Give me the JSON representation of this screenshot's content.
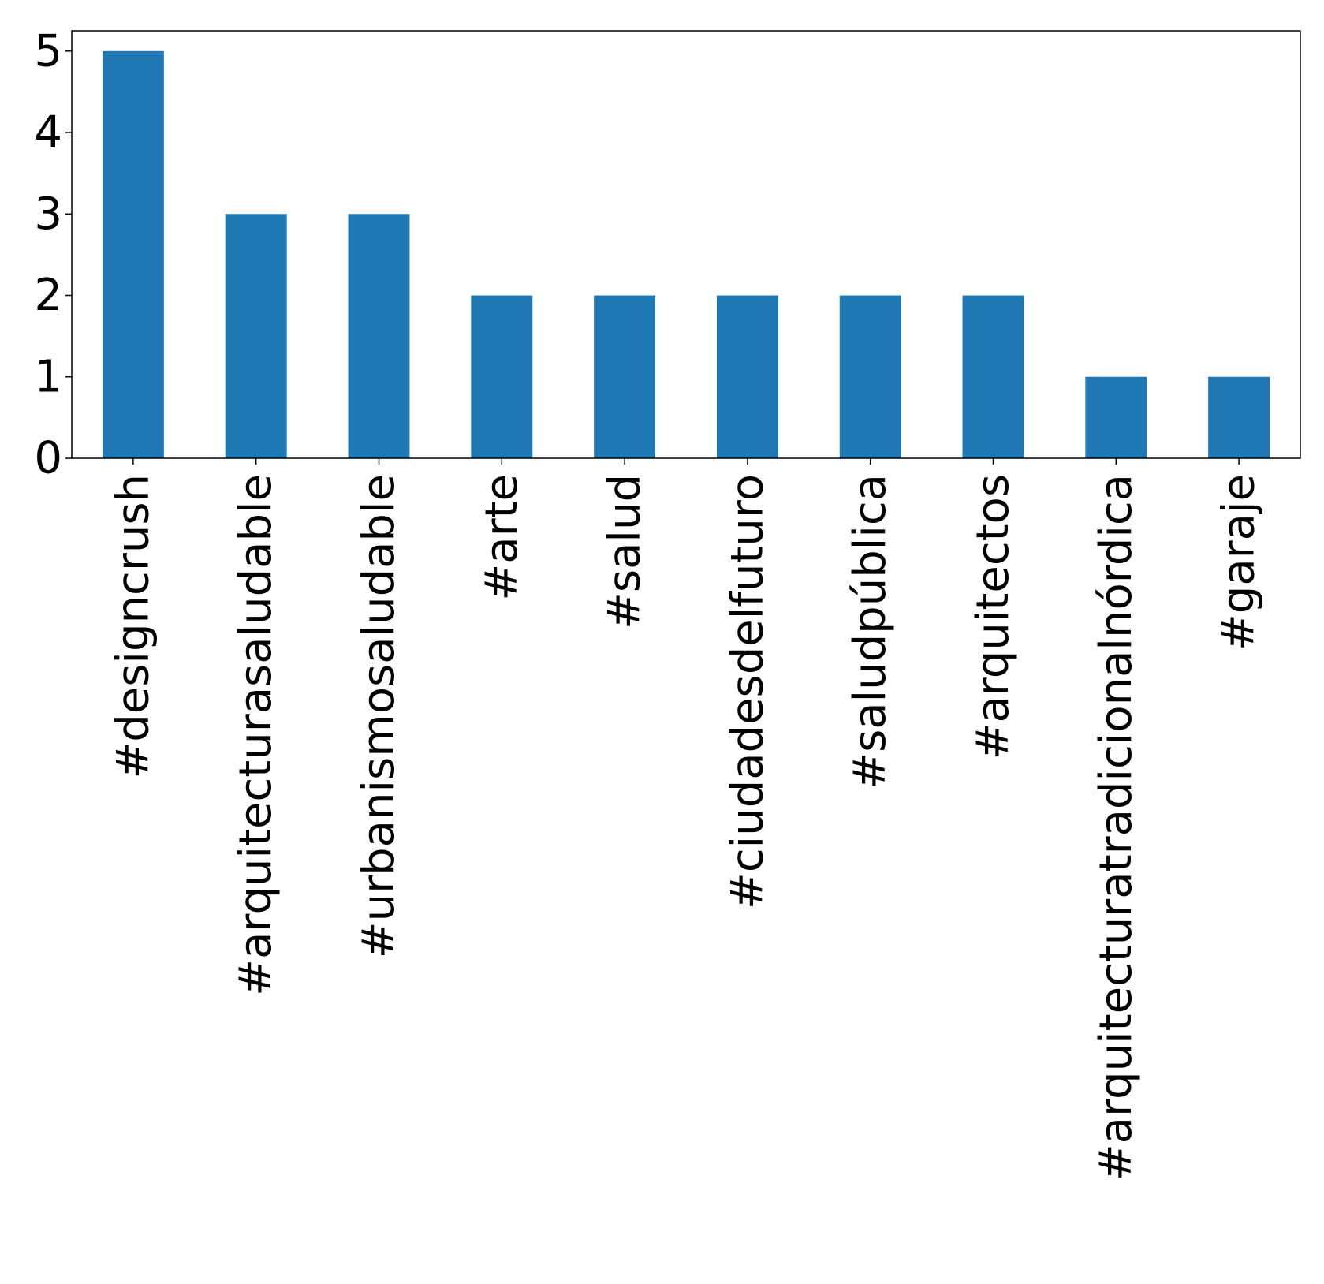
{
  "chart_data": {
    "type": "bar",
    "title": "",
    "xlabel": "",
    "ylabel": "",
    "categories": [
      "#designcrush",
      "#arquitecturasaludable",
      "#urbanismosaludable",
      "#arte",
      "#salud",
      "#ciudadesdelfuturo",
      "#saludpública",
      "#arquitectos",
      "#arquitecturatradicionalnórdica",
      "#garaje"
    ],
    "values": [
      5,
      3,
      3,
      2,
      2,
      2,
      2,
      2,
      1,
      1
    ],
    "ylim": [
      0,
      5.25
    ],
    "yticks": [
      0,
      1,
      2,
      3,
      4,
      5
    ],
    "grid": false,
    "legend": "none",
    "bar_color": "#1f77b4"
  }
}
